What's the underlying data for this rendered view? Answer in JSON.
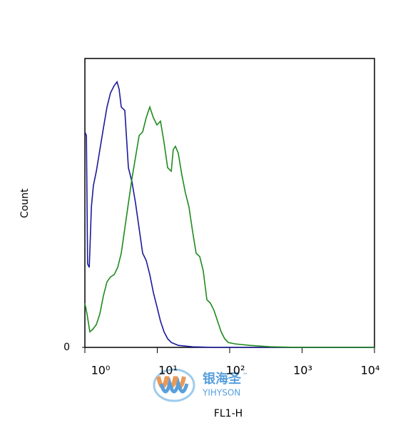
{
  "chart_data": {
    "type": "line",
    "y_label": "Count",
    "x_label": "FL1-H",
    "xlog": true,
    "xlim": [
      1,
      10000
    ],
    "xticks": [
      {
        "value": 1,
        "label": "10⁰"
      },
      {
        "value": 10,
        "label": "10¹"
      },
      {
        "value": 100,
        "label": "10²"
      },
      {
        "value": 1000,
        "label": "10³"
      },
      {
        "value": 10000,
        "label": "10⁴"
      }
    ],
    "ylim": [
      0,
      100
    ],
    "yticks": [
      0
    ],
    "series": [
      {
        "color": "#1a1a9c",
        "x": [
          1,
          1.05,
          1.09,
          1.15,
          1.23,
          1.31,
          1.44,
          1.61,
          1.8,
          2.02,
          2.26,
          2.54,
          2.78,
          2.97,
          3.18,
          3.56,
          3.99,
          4.47,
          5.01,
          5.61,
          6.28,
          7.03,
          7.88,
          8.83,
          9.89,
          11.07,
          12.4,
          13.9,
          15.6,
          19.5,
          30.8,
          60.7,
          189,
          587,
          1824,
          10000
        ],
        "values": [
          74.6,
          73.3,
          28.9,
          27.7,
          48.6,
          56,
          61,
          68.4,
          75.8,
          83.2,
          88.1,
          90.6,
          91.9,
          89.4,
          83.2,
          82,
          62.2,
          57.3,
          49.9,
          41.2,
          32.6,
          30.1,
          25.2,
          19,
          14.1,
          9.1,
          5.4,
          3,
          1.7,
          0.7,
          0.2,
          0,
          0,
          0,
          0,
          0
        ]
      },
      {
        "color": "#1f8a1f",
        "x": [
          1,
          1.07,
          1.17,
          1.28,
          1.44,
          1.61,
          1.8,
          2.02,
          2.26,
          2.54,
          2.84,
          3.18,
          3.56,
          3.99,
          4.47,
          5.01,
          5.61,
          6.28,
          7.03,
          7.88,
          8.83,
          9.89,
          11.07,
          12.4,
          13.9,
          15.6,
          16.6,
          17.8,
          19.5,
          21.8,
          24.4,
          27.4,
          30.8,
          34.4,
          38.6,
          43.2,
          48.4,
          54.2,
          60.7,
          68,
          76.2,
          85.3,
          95.5,
          120,
          189,
          372,
          919,
          10000
        ],
        "values": [
          15.3,
          11.6,
          5.4,
          6.2,
          7.9,
          11.6,
          17.8,
          22.7,
          24.4,
          25.2,
          27.7,
          32.6,
          41.2,
          49.9,
          58.5,
          65.9,
          73.3,
          74.6,
          79.5,
          83.2,
          79.5,
          77,
          78.3,
          70.9,
          62.2,
          61,
          68.4,
          69.6,
          67.2,
          59.8,
          53.6,
          48.6,
          40,
          32.6,
          31.4,
          26.4,
          16.5,
          15.3,
          12.8,
          9.1,
          5.4,
          3,
          1.7,
          1.2,
          0.7,
          0.2,
          0,
          0
        ]
      }
    ],
    "watermark": {
      "name": "银海圣",
      "trademark": "™",
      "brand": "YIHYSON"
    }
  }
}
